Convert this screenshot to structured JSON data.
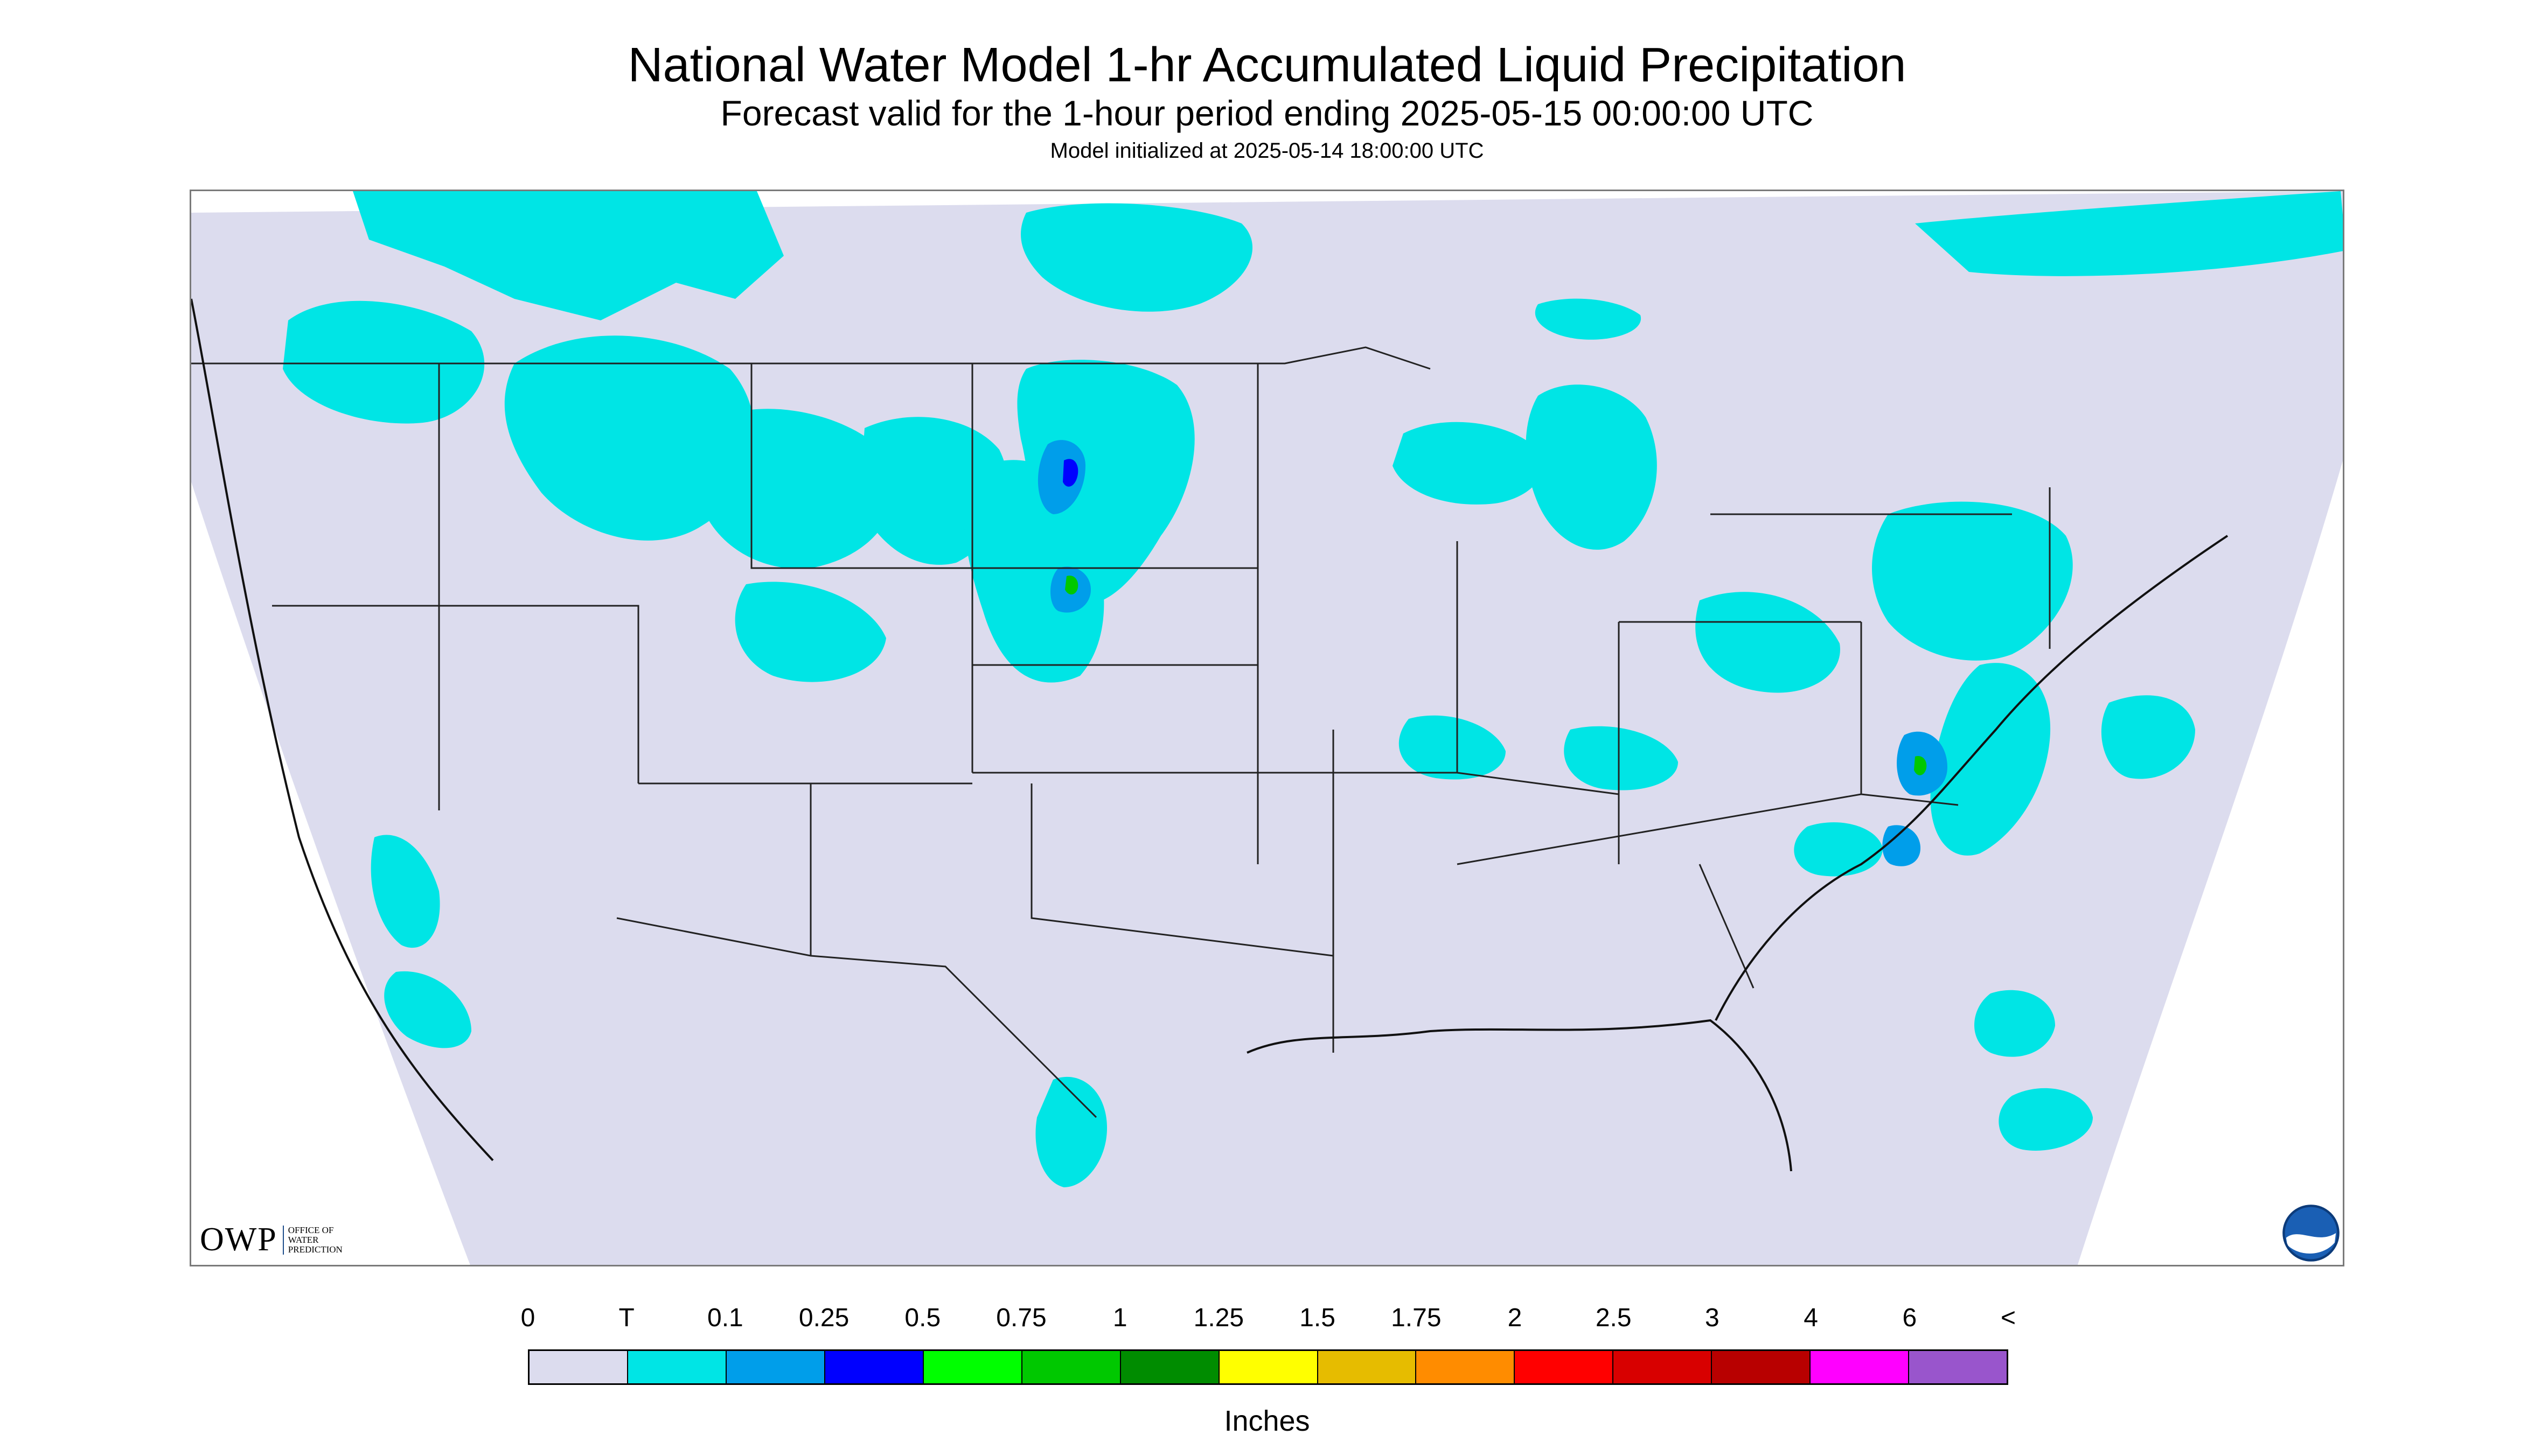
{
  "title": "National Water Model 1-hr Accumulated Liquid Precipitation",
  "subtitle": "Forecast valid for the 1-hour period ending 2025-05-15 00:00:00 UTC",
  "init_note": "Model initialized at 2025-05-14 18:00:00 UTC",
  "logos": {
    "owp_text": "OWP",
    "owp_subtitle": [
      "OFFICE OF",
      "WATER",
      "PREDICTION"
    ],
    "noaa_icon": "noaa-logo-icon"
  },
  "colors": {
    "background": "#dcdcee",
    "trace": "#00e5e5",
    "light_blue": "#009eea",
    "blue": "#0000ff",
    "green_light": "#00ff00",
    "green": "#00c800"
  },
  "legend": {
    "units": "Inches",
    "labels": [
      "0",
      "T",
      "0.1",
      "0.25",
      "0.5",
      "0.75",
      "1",
      "1.25",
      "1.5",
      "1.75",
      "2",
      "2.5",
      "3",
      "4",
      "6",
      "<"
    ],
    "colors": [
      "#dcdcee",
      "#00e5e5",
      "#009eea",
      "#0000ff",
      "#00ff00",
      "#00c800",
      "#008c00",
      "#ffff00",
      "#e6bc00",
      "#ff8c00",
      "#ff0000",
      "#d80000",
      "#b80000",
      "#ff00ff",
      "#9955cc"
    ]
  }
}
